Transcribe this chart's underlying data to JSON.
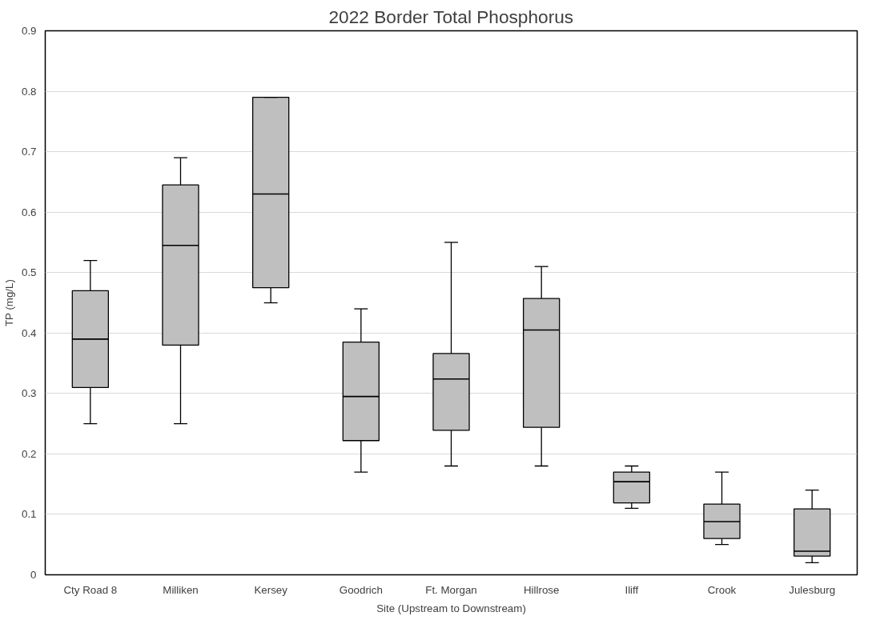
{
  "chart_data": {
    "type": "box",
    "title": "2022 Border Total Phosphorus",
    "xlabel": "Site (Upstream to Downstream)",
    "ylabel": "TP (mg/L)",
    "categories": [
      "Cty Road 8",
      "Milliken",
      "Kersey",
      "Goodrich",
      "Ft. Morgan",
      "Hillrose",
      "Iliff",
      "Crook",
      "Julesburg"
    ],
    "color": "#bfbfbf",
    "boxes": [
      {
        "low": 0.25,
        "q1": 0.31,
        "median": 0.39,
        "q3": 0.47,
        "high": 0.52
      },
      {
        "low": 0.25,
        "q1": 0.38,
        "median": 0.545,
        "q3": 0.645,
        "high": 0.69
      },
      {
        "low": 0.45,
        "q1": 0.475,
        "median": 0.63,
        "q3": 0.79,
        "high": 0.79
      },
      {
        "low": 0.17,
        "q1": 0.222,
        "median": 0.295,
        "q3": 0.385,
        "high": 0.44
      },
      {
        "low": 0.18,
        "q1": 0.239,
        "median": 0.324,
        "q3": 0.366,
        "high": 0.55
      },
      {
        "low": 0.18,
        "q1": 0.244,
        "median": 0.405,
        "q3": 0.457,
        "high": 0.51
      },
      {
        "low": 0.11,
        "q1": 0.119,
        "median": 0.154,
        "q3": 0.17,
        "high": 0.18
      },
      {
        "low": 0.05,
        "q1": 0.06,
        "median": 0.088,
        "q3": 0.117,
        "high": 0.17
      },
      {
        "low": 0.02,
        "q1": 0.031,
        "median": 0.039,
        "q3": 0.109,
        "high": 0.14
      }
    ],
    "ylim": [
      0,
      0.9
    ],
    "yticks": [
      0,
      0.1,
      0.2,
      0.3,
      0.4,
      0.5,
      0.6,
      0.7,
      0.8,
      0.9
    ],
    "grid": "y"
  }
}
